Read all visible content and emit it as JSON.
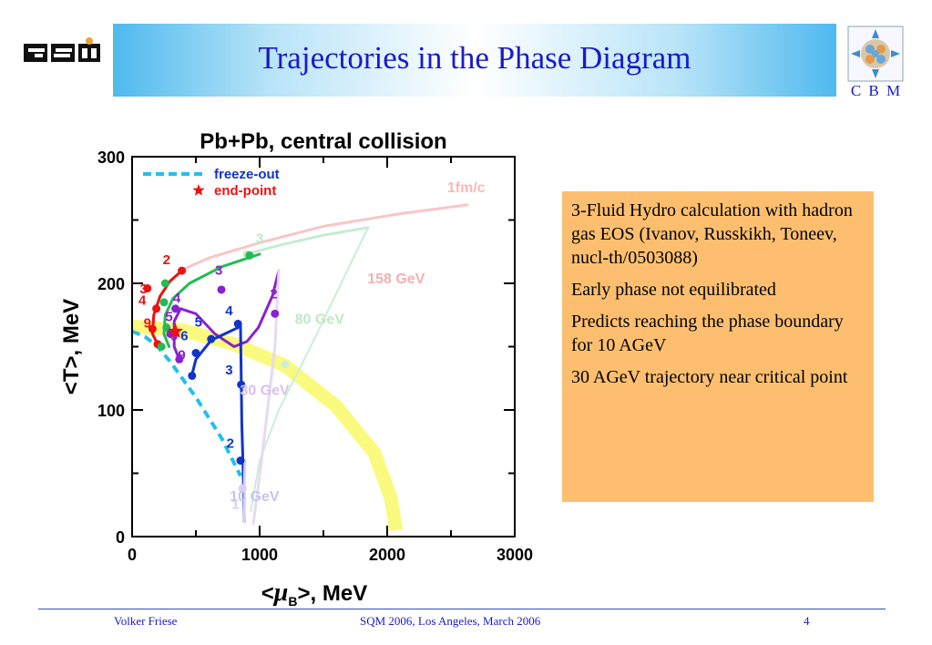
{
  "slide": {
    "title": "Trajectories in the Phase Diagram",
    "cbm_label": "C B M",
    "footer": {
      "author": "Volker Friese",
      "event": "SQM 2006, Los Angeles, March 2006",
      "page": "4"
    },
    "colors": {
      "title": "#1a1acc",
      "box": "#fdbf6f"
    }
  },
  "info": {
    "items": [
      "3-Fluid Hydro calculation with hadron gas EOS (Ivanov, Russkikh, Toneev, nucl-th/0503088)",
      "Early phase not equilibrated",
      "Predicts reaching the phase boundary for 10 AGeV",
      "30 AGeV trajectory near critical point"
    ]
  },
  "chart_data": {
    "type": "line",
    "title": "Pb+Pb, central collision",
    "xlabel_parts": [
      "<",
      "μ",
      "B",
      ">, MeV"
    ],
    "ylabel": "<T>, MeV",
    "xlim": [
      0,
      3000
    ],
    "ylim": [
      0,
      300
    ],
    "xticks": [
      "0",
      "1000",
      "2000",
      "3000"
    ],
    "yticks": [
      "0",
      "100",
      "200",
      "300"
    ],
    "legend": [
      {
        "label": "freeze-out",
        "color": "#22c0ee"
      },
      {
        "label": "end-point",
        "color": "#ee1111"
      }
    ],
    "annotations": [
      {
        "text": "1fm/c",
        "x": 2620,
        "y": 272,
        "color": "#f7b8b8"
      },
      {
        "text": "158 GeV",
        "x": 2070,
        "y": 200,
        "color": "#f6b0b0"
      },
      {
        "text": "80 GeV",
        "x": 1470,
        "y": 168,
        "color": "#bdeac8"
      },
      {
        "text": "30 GeV",
        "x": 1040,
        "y": 112,
        "color": "#dcc0e8"
      },
      {
        "text": "10 GeV",
        "x": 960,
        "y": 28,
        "color": "#c8c4ee"
      }
    ],
    "phase_boundary": {
      "color": "#fafa70",
      "points": [
        [
          0,
          166
        ],
        [
          400,
          163
        ],
        [
          800,
          152
        ],
        [
          1200,
          135
        ],
        [
          1600,
          103
        ],
        [
          1900,
          66
        ],
        [
          2030,
          30
        ],
        [
          2070,
          5
        ]
      ]
    },
    "freeze_out": {
      "color": "#22c0ee",
      "points": [
        [
          0,
          162
        ],
        [
          100,
          158
        ],
        [
          200,
          150
        ],
        [
          300,
          138
        ],
        [
          400,
          124
        ],
        [
          500,
          110
        ],
        [
          600,
          94
        ],
        [
          700,
          78
        ],
        [
          800,
          58
        ],
        [
          850,
          48
        ]
      ]
    },
    "end_point": {
      "x": 340,
      "y": 162,
      "color": "#ee1111"
    },
    "series": [
      {
        "name": "158 GeV",
        "color": "#f8c6c6",
        "width": 3,
        "points": [
          [
            2630,
            262
          ],
          [
            2100,
            255
          ],
          [
            1500,
            245
          ],
          [
            1000,
            232
          ],
          [
            600,
            220
          ],
          [
            400,
            211
          ]
        ],
        "markers": []
      },
      {
        "name": "158 GeV",
        "color": "#ee1111",
        "width": 3,
        "points": [
          [
            390,
            210
          ],
          [
            300,
            202
          ],
          [
            220,
            190
          ],
          [
            170,
            175
          ],
          [
            160,
            160
          ],
          [
            200,
            152
          ]
        ],
        "markers": [
          {
            "x": 390,
            "y": 210,
            "label": "2"
          },
          {
            "x": 120,
            "y": 196,
            "label": "3"
          },
          {
            "x": 190,
            "y": 180,
            "label": "4"
          },
          {
            "x": 160,
            "y": 164,
            "label": "9"
          },
          {
            "x": 200,
            "y": 152,
            "label": ""
          }
        ]
      },
      {
        "name": "80 GeV",
        "color": "#c4ecd0",
        "width": 3,
        "points": [
          [
            1850,
            244
          ],
          [
            1500,
            238
          ],
          [
            1150,
            230
          ],
          [
            900,
            223
          ]
        ],
        "markers": [
          {
            "x": 900,
            "y": 223,
            "label": ""
          }
        ]
      },
      {
        "name": "80 GeV",
        "color": "#22bb55",
        "width": 3,
        "points": [
          [
            1000,
            223
          ],
          [
            700,
            213
          ],
          [
            450,
            200
          ],
          [
            320,
            188
          ],
          [
            260,
            175
          ],
          [
            250,
            160
          ],
          [
            290,
            150
          ]
        ],
        "markers": [
          {
            "x": 920,
            "y": 222,
            "label": ""
          },
          {
            "x": 260,
            "y": 200,
            "label": "3"
          },
          {
            "x": 250,
            "y": 185,
            "label": "4"
          },
          {
            "x": 270,
            "y": 165,
            "label": ""
          },
          {
            "x": 230,
            "y": 150,
            "label": ""
          }
        ]
      },
      {
        "name": "80 GeV",
        "color": "#c8f0d4",
        "width": 2,
        "points": [
          [
            1850,
            244
          ],
          [
            1400,
            150
          ],
          [
            1150,
            100
          ],
          [
            1000,
            60
          ],
          [
            930,
            20
          ]
        ],
        "markers": [
          {
            "x": 1200,
            "y": 136,
            "label": "1"
          }
        ]
      },
      {
        "name": "30 GeV",
        "color": "#8a22cc",
        "width": 3,
        "points": [
          [
            1150,
            210
          ],
          [
            1100,
            190
          ],
          [
            990,
            165
          ],
          [
            900,
            154
          ],
          [
            800,
            150
          ],
          [
            650,
            160
          ],
          [
            500,
            176
          ],
          [
            380,
            180
          ],
          [
            330,
            170
          ],
          [
            330,
            150
          ],
          [
            370,
            140
          ]
        ],
        "markers": [
          {
            "x": 1120,
            "y": 176,
            "label": "2"
          },
          {
            "x": 700,
            "y": 195,
            "label": "3"
          },
          {
            "x": 340,
            "y": 180,
            "label": "4"
          },
          {
            "x": 300,
            "y": 160,
            "label": "9"
          },
          {
            "x": 370,
            "y": 140,
            "label": "9"
          }
        ]
      },
      {
        "name": "30 GeV",
        "color": "#e8d8f4",
        "width": 3,
        "points": [
          [
            1150,
            210
          ],
          [
            1120,
            150
          ],
          [
            1050,
            90
          ],
          [
            990,
            40
          ],
          [
            950,
            10
          ]
        ],
        "markers": []
      },
      {
        "name": "10 GeV",
        "color": "#1133cc",
        "width": 3,
        "points": [
          [
            850,
            166
          ],
          [
            620,
            155
          ],
          [
            500,
            140
          ],
          [
            470,
            128
          ]
        ],
        "markers": [
          {
            "x": 830,
            "y": 168,
            "label": "4"
          },
          {
            "x": 620,
            "y": 156,
            "label": "5"
          },
          {
            "x": 500,
            "y": 145,
            "label": "6"
          },
          {
            "x": 470,
            "y": 127,
            "label": ""
          }
        ]
      },
      {
        "name": "10 GeV",
        "color": "#1133cc",
        "width": 3,
        "points": [
          [
            850,
            166
          ],
          [
            855,
            130
          ],
          [
            860,
            90
          ],
          [
            870,
            55
          ],
          [
            880,
            12
          ]
        ],
        "markers": [
          {
            "x": 855,
            "y": 120,
            "label": "3"
          },
          {
            "x": 850,
            "y": 60,
            "label": "2"
          }
        ]
      },
      {
        "name": "10 GeV",
        "color": "#d8d0f4",
        "width": 3,
        "points": [
          [
            880,
            12
          ],
          [
            880,
            40
          ],
          [
            885,
            60
          ]
        ],
        "markers": [
          {
            "x": 865,
            "y": 38,
            "label": "1"
          }
        ]
      }
    ],
    "floating_labels": [
      {
        "text": "2",
        "x": 270,
        "y": 215,
        "color": "#ee1111"
      },
      {
        "text": "3",
        "x": 90,
        "y": 192,
        "color": "#ee1111"
      },
      {
        "text": "4",
        "x": 80,
        "y": 183,
        "color": "#ee1111"
      },
      {
        "text": "9",
        "x": 120,
        "y": 165,
        "color": "#ee1111"
      },
      {
        "text": "3",
        "x": 1000,
        "y": 232,
        "color": "#bdeac8"
      },
      {
        "text": "3",
        "x": 680,
        "y": 207,
        "color": "#8a22cc"
      },
      {
        "text": "2",
        "x": 1110,
        "y": 188,
        "color": "#8a22cc"
      },
      {
        "text": "4",
        "x": 350,
        "y": 185,
        "color": "#8a22cc"
      },
      {
        "text": "5",
        "x": 290,
        "y": 170,
        "color": "#8a22cc"
      },
      {
        "text": "9",
        "x": 330,
        "y": 155,
        "color": "#8a22cc"
      },
      {
        "text": "9",
        "x": 390,
        "y": 140,
        "color": "#8a22cc"
      },
      {
        "text": "4",
        "x": 760,
        "y": 175,
        "color": "#1133cc"
      },
      {
        "text": "5",
        "x": 520,
        "y": 166,
        "color": "#1133cc"
      },
      {
        "text": "6",
        "x": 410,
        "y": 155,
        "color": "#1133cc"
      },
      {
        "text": "3",
        "x": 760,
        "y": 128,
        "color": "#1133cc"
      },
      {
        "text": "2",
        "x": 770,
        "y": 70,
        "color": "#1133cc"
      },
      {
        "text": "1",
        "x": 810,
        "y": 22,
        "color": "#d8d0f4"
      }
    ]
  }
}
